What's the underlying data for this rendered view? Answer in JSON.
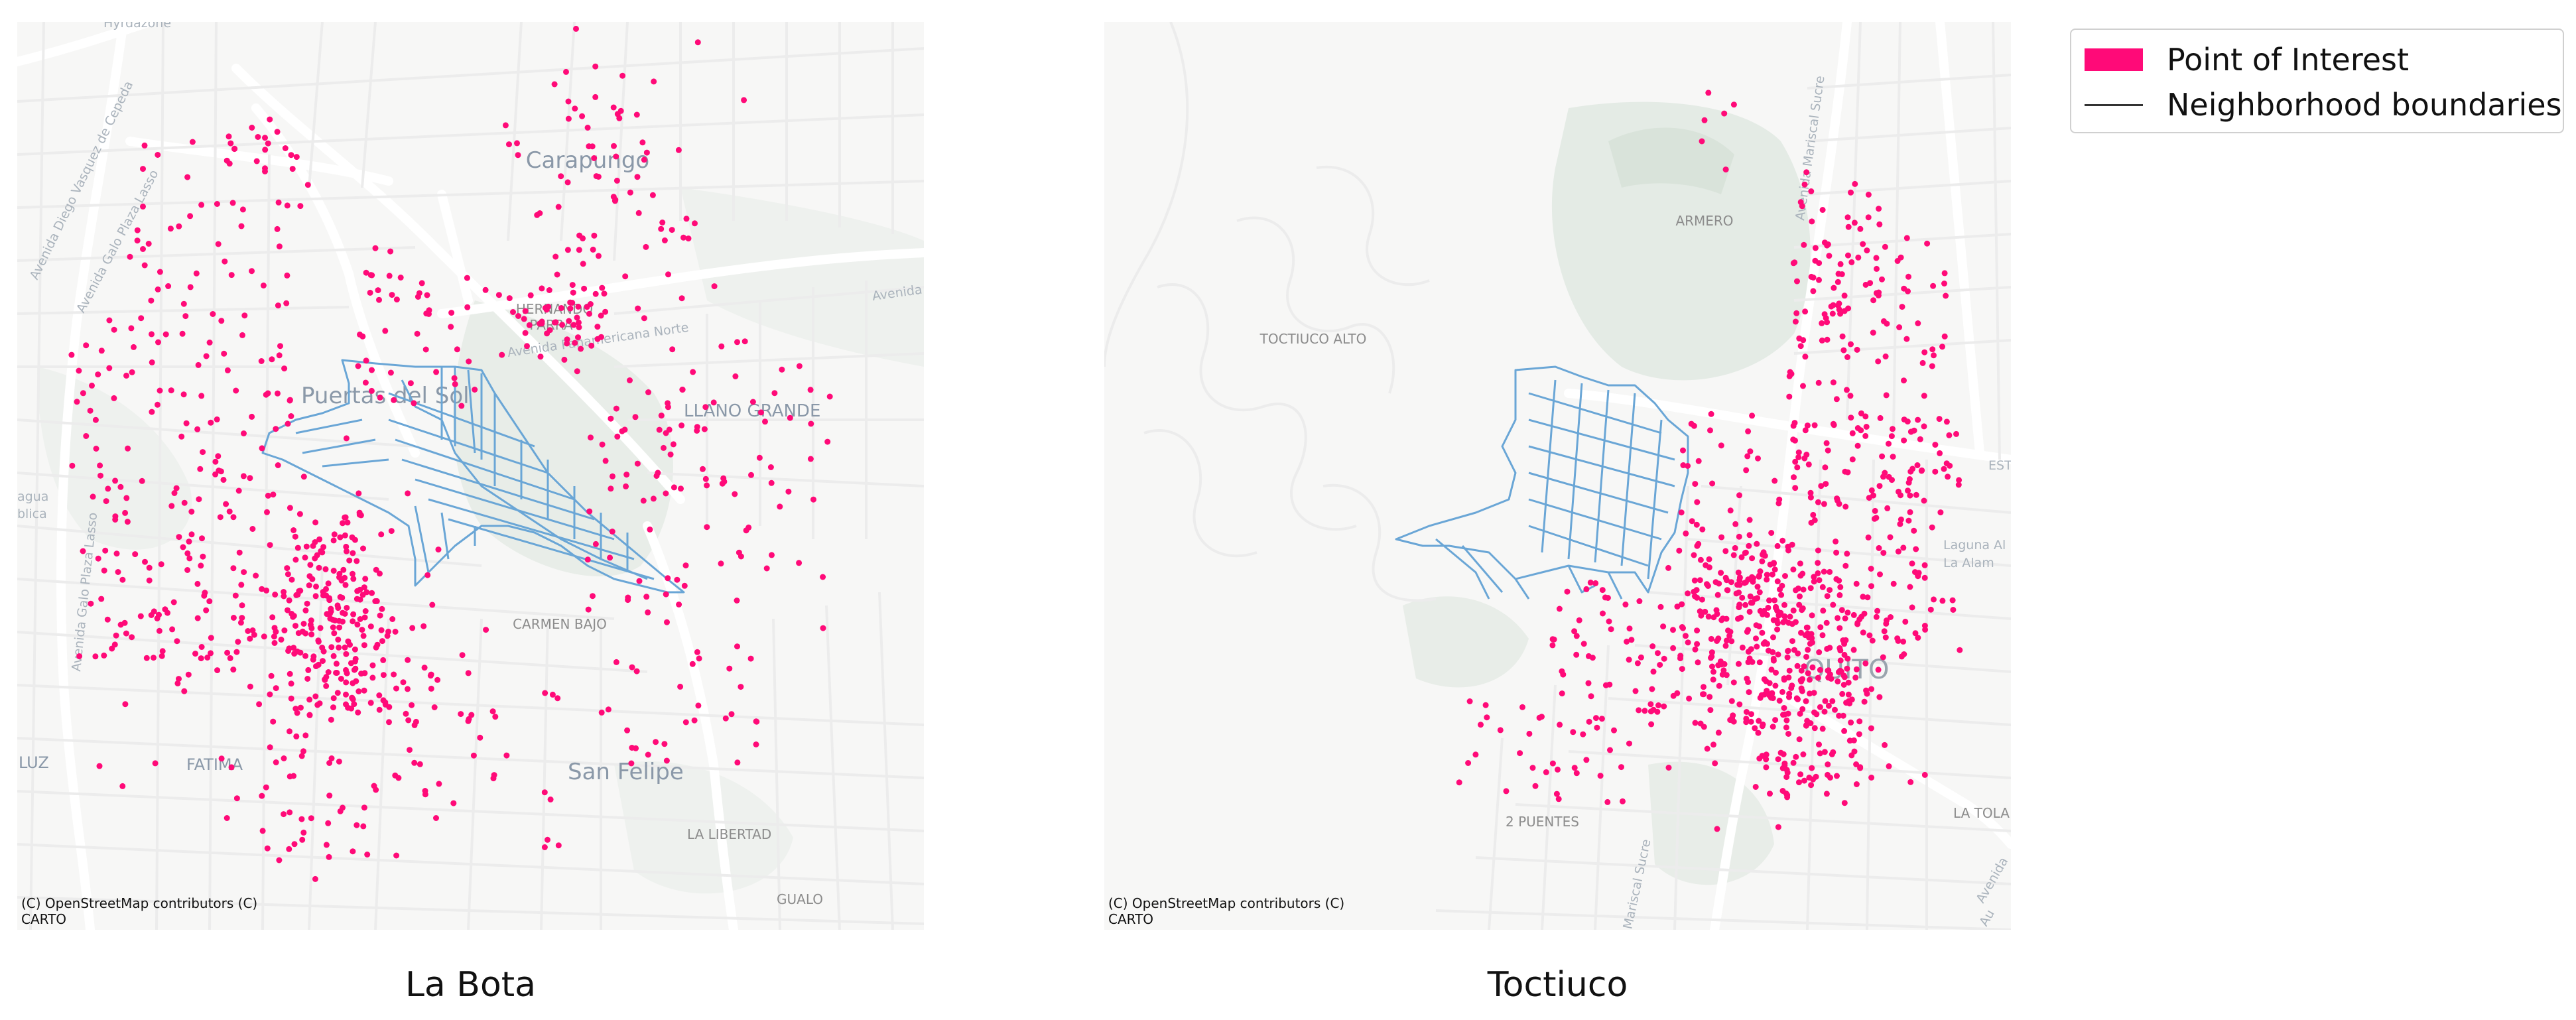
{
  "legend": {
    "poi_label": "Point of Interest",
    "boundary_label": "Neighborhood boundaries"
  },
  "colors": {
    "poi": "#ff0a78",
    "boundary": "#6aa6d6",
    "basemap_background": "#f7f7f6",
    "road": "#ffffff",
    "green_area": "#e6ebe6"
  },
  "maps": [
    {
      "caption": "La Bota",
      "attribution": [
        "(C) OpenStreetMap contributors (C)",
        "CARTO"
      ],
      "labels": {
        "carapungo": "Carapungo",
        "hernando_parra": "HERNANDO",
        "parra": "PARRA",
        "puertas_del_sol": "Puertas del Sol",
        "llano_grande": "LLANO GRANDE",
        "carmen_bajo": "CARMEN BAJO",
        "san_felipe": "San Felipe",
        "fatima": "FATIMA",
        "la_libertad": "LA LIBERTAD",
        "gualo": "GUALO",
        "luz": "LUZ",
        "avenida_diego": "Avenida Diego Vasquez de Cepeda",
        "avenida_galo": "Avenida Galo Plaza Lasso",
        "avenida_panamericana": "Avenida Panamericana Norte",
        "avenida": "Avenida",
        "hyrdazone": "Hyrdazone",
        "agua": "agua",
        "blica": "blica",
        "galo_plaza": "Avenida Galo Plaza Lasso"
      }
    },
    {
      "caption": "Toctiuco",
      "attribution": [
        "(C) OpenStreetMap contributors (C)",
        "CARTO"
      ],
      "labels": {
        "armero": "ARMERO",
        "toctiuco_alto": "TOCTIUCO ALTO",
        "quito": "QUITO",
        "dos_puentes": "2 PUENTES",
        "la_tola": "LA TOLA",
        "est": "EST",
        "laguna": "Laguna Al",
        "la_alameda": "La Alam",
        "av_mariscal_sucre": "Avenida Mariscal Sucre",
        "mariscal_sucre": "Mariscal Sucre",
        "avenida": "Avenida",
        "au": "Au"
      }
    }
  ]
}
